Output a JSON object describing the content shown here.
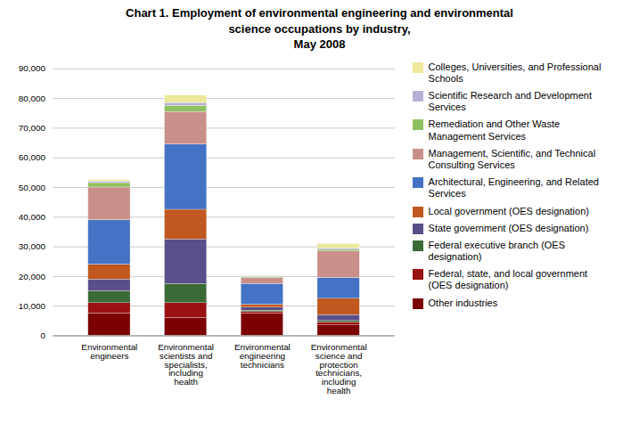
{
  "chart_data": {
    "type": "bar",
    "stacked": true,
    "title": "Chart 1. Employment of environmental engineering and environmental\nscience occupations by industry,\nMay 2008",
    "categories": [
      "Environmental\nengineers",
      "Environmental\nscientists and\nspecialists,\nincluding\nhealth",
      "Environmental\nengineering\ntechnicians",
      "Environmental\nscience and\nprotection\ntechnicians,\nincluding\nhealth"
    ],
    "series": [
      {
        "name": "Other industries",
        "color": "#7B0000",
        "values": [
          7500,
          6000,
          7500,
          3500
        ]
      },
      {
        "name": "Federal, state, and local government\n(OES designation)",
        "color": "#9B1010",
        "values": [
          3500,
          5000,
          500,
          1000
        ]
      },
      {
        "name": "Federal executive branch (OES\ndesignation)",
        "color": "#3A6B35",
        "values": [
          4000,
          6500,
          500,
          500
        ]
      },
      {
        "name": "State government (OES designation)",
        "color": "#5B4F8A",
        "values": [
          4000,
          15000,
          1000,
          2000
        ]
      },
      {
        "name": "Local government (OES designation)",
        "color": "#C05820",
        "values": [
          5000,
          10000,
          1000,
          5500
        ]
      },
      {
        "name": "Architectural, Engineering, and Related\nServices",
        "color": "#4472C4",
        "values": [
          15000,
          22000,
          7000,
          7000
        ]
      },
      {
        "name": "Management, Scientific, and Technical\nConsulting Services",
        "color": "#C9908A",
        "values": [
          11000,
          11000,
          2000,
          9000
        ]
      },
      {
        "name": "Remediation and Other Waste\nManagement Services",
        "color": "#90C060",
        "values": [
          1500,
          2000,
          300,
          500
        ]
      },
      {
        "name": "Scientific Research and Development\nServices",
        "color": "#B8B0D8",
        "values": [
          500,
          1000,
          200,
          500
        ]
      },
      {
        "name": "Colleges, Universities, and Professional\nSchools",
        "color": "#EDE89A",
        "values": [
          500,
          2500,
          200,
          1500
        ]
      }
    ],
    "ylim": [
      0,
      90000
    ],
    "yticks": [
      0,
      {
        "value": 10000,
        "label": "10,000"
      },
      {
        "value": 20000,
        "label": "20,000"
      },
      {
        "value": 30000,
        "label": "30,000"
      },
      {
        "value": 40000,
        "label": "40,000"
      },
      {
        "value": 50000,
        "label": "50,000"
      },
      {
        "value": 60000,
        "label": "60,000"
      },
      {
        "value": 70000,
        "label": "70,000"
      },
      {
        "value": 80000,
        "label": "80,000"
      },
      {
        "value": 90000,
        "label": "90,000"
      }
    ],
    "grid": true,
    "legend": "right"
  }
}
